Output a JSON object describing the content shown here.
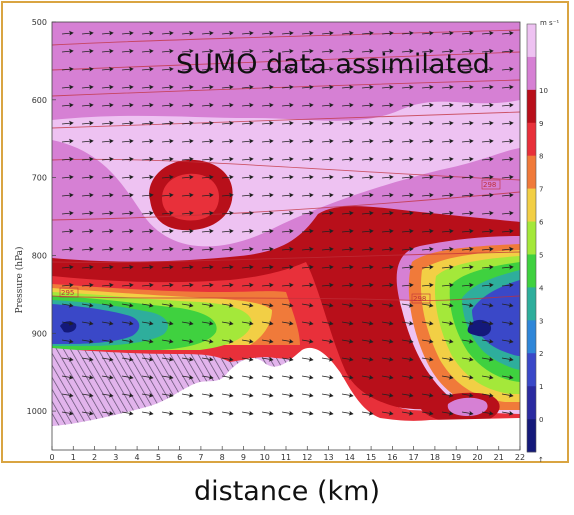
{
  "chart_data": {
    "type": "heatmap",
    "title": "",
    "annotation": "SUMO data assimilated",
    "xlabel": "distance (km)",
    "ylabel": "Pressure (hPa)",
    "xlim": [
      0,
      22
    ],
    "ylim": [
      1050,
      500
    ],
    "x_ticks": [
      "0",
      "1",
      "2",
      "3",
      "4",
      "5",
      "6",
      "7",
      "8",
      "9",
      "10",
      "11",
      "12",
      "13",
      "14",
      "15",
      "16",
      "17",
      "18",
      "19",
      "20",
      "21",
      "22"
    ],
    "y_ticks": [
      {
        "value": 500,
        "label": "500"
      },
      {
        "value": 600,
        "label": "600"
      },
      {
        "value": 700,
        "label": "700"
      },
      {
        "value": 800,
        "label": "800"
      },
      {
        "value": 900,
        "label": "900"
      },
      {
        "value": 1000,
        "label": "1000"
      }
    ],
    "colorbar": {
      "unit": "m s⁻¹",
      "levels": [
        0,
        1,
        2,
        3,
        4,
        5,
        6,
        7,
        8,
        9,
        10,
        11
      ],
      "labels": [
        "0",
        "1",
        "2",
        "3",
        "4",
        "5",
        "6",
        "7",
        "8",
        "9",
        "10"
      ],
      "colors": [
        "#14197a",
        "#2a2aa0",
        "#3a48c8",
        "#2f86d8",
        "#2eae9c",
        "#3fd13f",
        "#a4e83a",
        "#f2cf45",
        "#f07a3a",
        "#e8303a",
        "#b80f1a",
        "#d680d4",
        "#eec2f2"
      ]
    },
    "contour_labels": [
      "295",
      "298",
      "298"
    ],
    "colors": {
      "frame_border": "#d9a441",
      "background": "#eec2f2"
    }
  }
}
